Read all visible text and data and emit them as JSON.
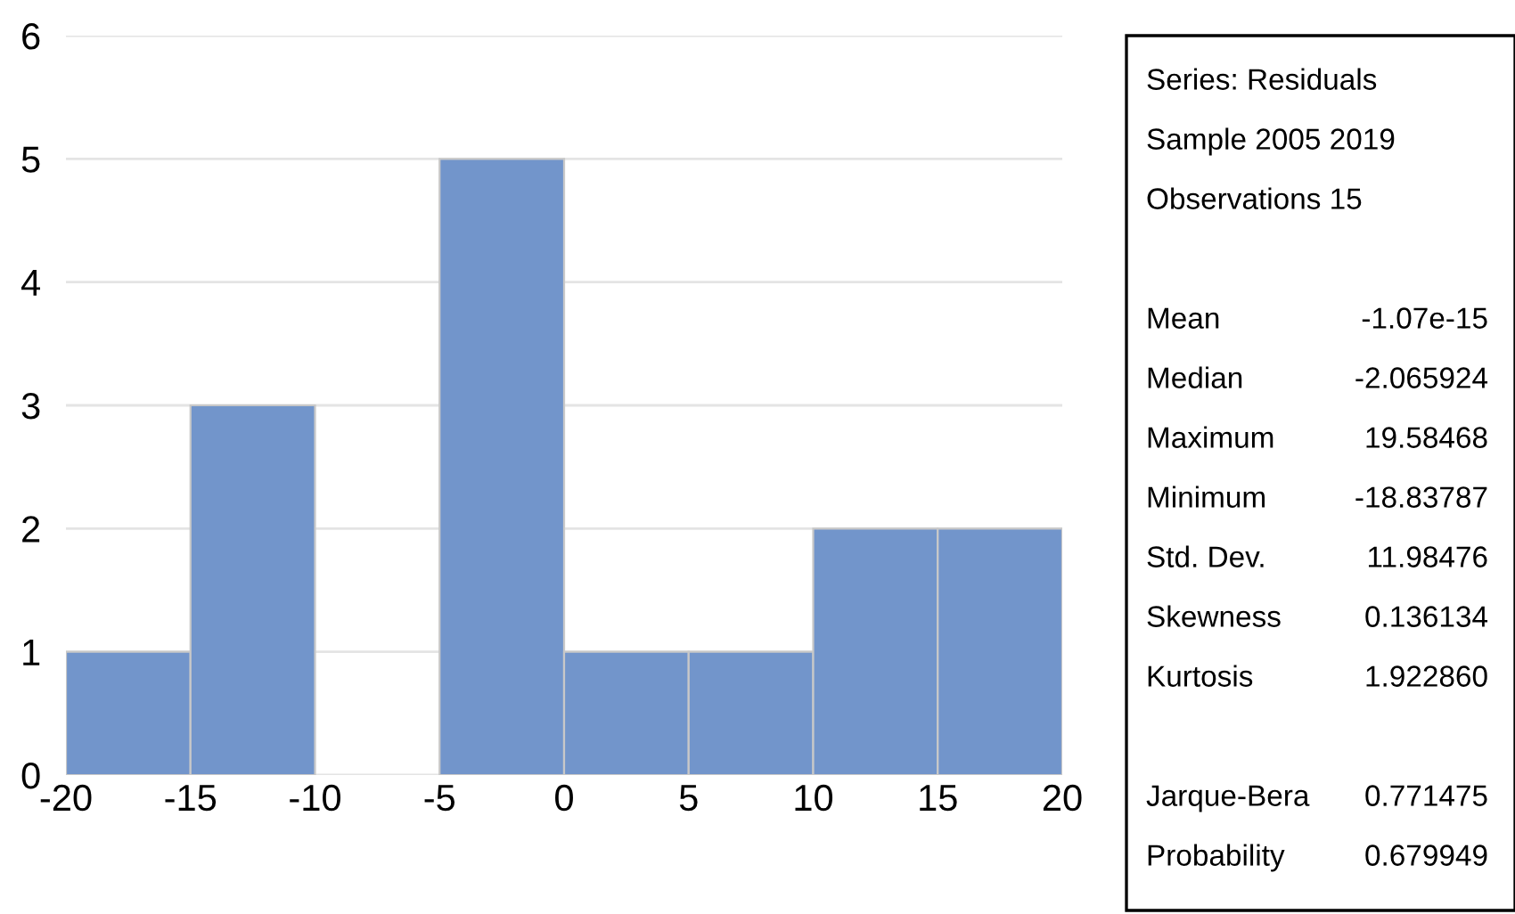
{
  "chart_data": {
    "type": "histogram",
    "bins": [
      -20,
      -15,
      -10,
      -5,
      0,
      5,
      10,
      15,
      20
    ],
    "values": [
      1,
      3,
      0,
      5,
      1,
      1,
      2,
      2
    ],
    "color": "#7295cb",
    "xlim": [
      -20,
      20
    ],
    "xticks": [
      -20,
      -15,
      -10,
      -5,
      0,
      5,
      10,
      15,
      20
    ],
    "ylim": [
      0,
      6
    ],
    "yticks": [
      0,
      1,
      2,
      3,
      4,
      5,
      6
    ],
    "grid": "y",
    "annotations": [
      "Series: Residuals",
      "Sample 2005 2019",
      "Observations 15",
      "Mean\t-1.07e-15",
      "Median\t-2.065924",
      "Maximum\t 19.58468",
      "Minimum\t-18.83787",
      "Std. Dev.\t 11.98476",
      "Skewness\t 0.136134",
      "Kurtosis\t 1.922860",
      "Jarque-Bera\t 0.771475",
      "Probability\t 0.679949"
    ]
  }
}
